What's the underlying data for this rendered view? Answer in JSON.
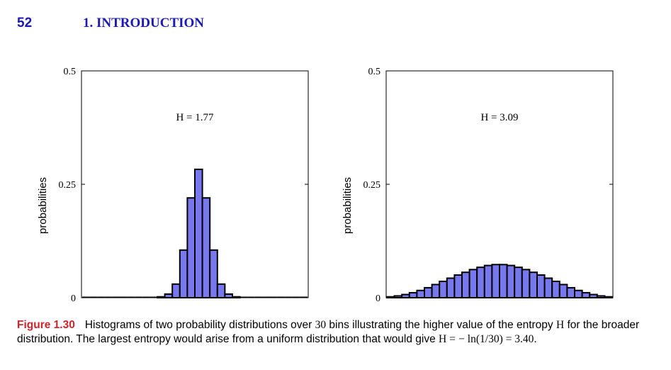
{
  "header": {
    "page_number": "52",
    "chapter_title": "1. INTRODUCTION"
  },
  "colors": {
    "bar_fill": "#7777ee",
    "bar_stroke": "#000000",
    "header_text": "#1a1ab8",
    "figure_label": "#d2232a"
  },
  "chart_data": [
    {
      "type": "bar",
      "ylabel": "probabilities",
      "ylim": [
        0,
        0.5
      ],
      "yticks": [
        "0",
        "0.25",
        "0.5"
      ],
      "annotation": "H = 1.77",
      "bins": 30,
      "values": [
        0,
        0,
        0,
        0,
        0,
        0,
        0,
        0,
        0,
        0,
        0.002,
        0.008,
        0.03,
        0.105,
        0.22,
        0.283,
        0.22,
        0.105,
        0.03,
        0.008,
        0.002,
        0,
        0,
        0,
        0,
        0,
        0,
        0,
        0,
        0
      ]
    },
    {
      "type": "bar",
      "ylabel": "probabilities",
      "ylim": [
        0,
        0.5
      ],
      "yticks": [
        "0",
        "0.25",
        "0.5"
      ],
      "annotation": "H = 3.09",
      "bins": 30,
      "values": [
        0.002,
        0.004,
        0.007,
        0.011,
        0.016,
        0.022,
        0.029,
        0.036,
        0.043,
        0.05,
        0.056,
        0.062,
        0.067,
        0.071,
        0.073,
        0.073,
        0.071,
        0.067,
        0.062,
        0.056,
        0.05,
        0.043,
        0.036,
        0.029,
        0.022,
        0.016,
        0.011,
        0.007,
        0.004,
        0.002
      ]
    }
  ],
  "caption": {
    "label": "Figure 1.30",
    "line1_text": "Histograms of two probability distributions over ",
    "line1_num": "30",
    "line1_rest": " bins illustrating the higher value of the entropy",
    "line2_var": "H",
    "line2_text": " for the broader distribution. The largest entropy would arise from a uniform distribution that would give ",
    "line2_eq": "H =",
    "line3_eq": "− ln(1/30) = 3.40",
    "line3_end": "."
  }
}
